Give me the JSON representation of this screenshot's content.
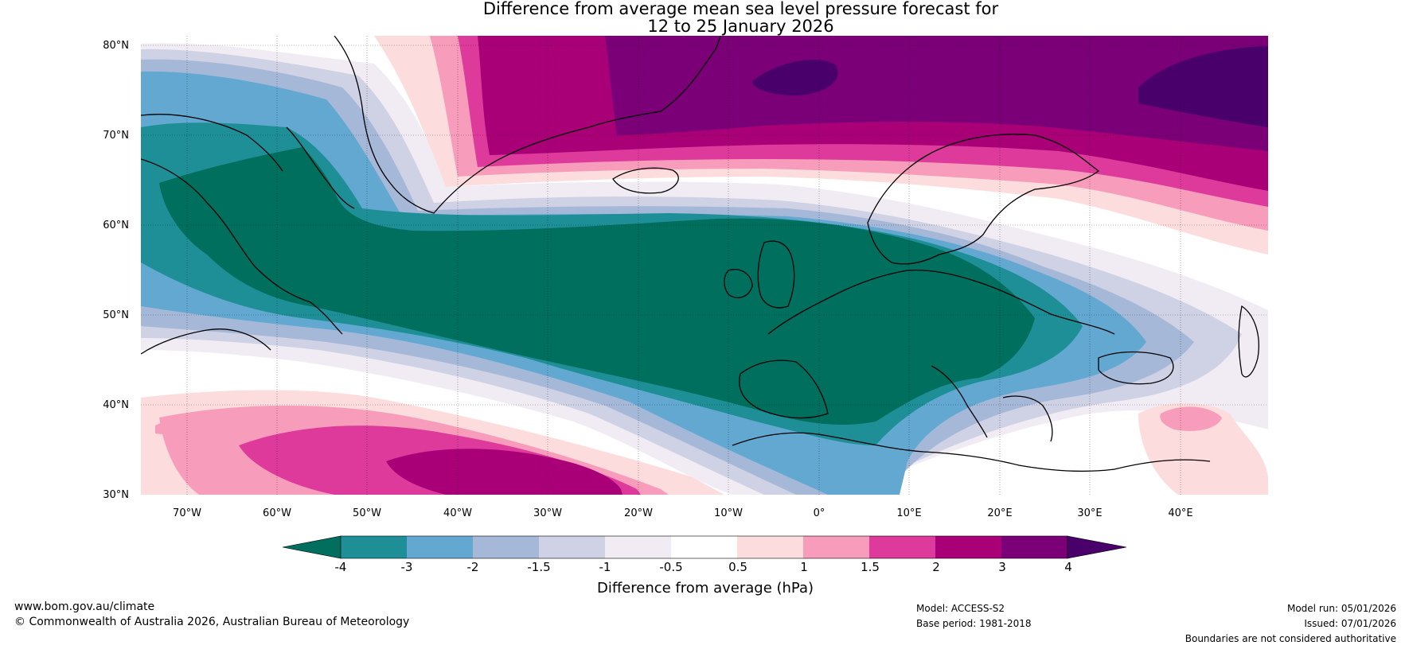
{
  "title": {
    "line1": "Difference from average mean sea level pressure forecast for",
    "line2": "12 to 25 January 2026"
  },
  "axes": {
    "lat_labels": [
      "80°N",
      "70°N",
      "60°N",
      "50°N",
      "40°N",
      "30°N"
    ],
    "lon_labels": [
      "70°W",
      "60°W",
      "50°W",
      "40°W",
      "30°W",
      "20°W",
      "10°W",
      "0°",
      "10°E",
      "20°E",
      "30°E",
      "40°E"
    ]
  },
  "colorbar": {
    "label": "Difference from average (hPa)",
    "ticks": [
      "-4",
      "-3",
      "-2",
      "-1.5",
      "-1",
      "-0.5",
      "0.5",
      "1",
      "1.5",
      "2",
      "3",
      "4"
    ],
    "colors": [
      "#006f5e",
      "#1f8f97",
      "#63a8d0",
      "#a6b8d8",
      "#cfd1e4",
      "#f1ecf3",
      "#ffffff",
      "#fcdcdc",
      "#f79cba",
      "#dd3a9b",
      "#aa0077",
      "#7b0077",
      "#4a006a"
    ]
  },
  "chart_data": {
    "type": "heatmap",
    "title": "Difference from average mean sea level pressure forecast for 12 to 25 January 2026",
    "units": "hPa",
    "lon_range": [
      -75,
      50
    ],
    "lat_range": [
      30,
      81
    ],
    "levels": [
      -4,
      -3,
      -2,
      -1.5,
      -1,
      -0.5,
      0.5,
      1,
      1.5,
      2,
      3,
      4
    ],
    "features": [
      {
        "name": "negative anomaly trough",
        "region": "Labrador Sea through North Atlantic to central Europe",
        "min": "-4"
      },
      {
        "name": "positive anomaly",
        "region": "Greenland Sea to Barents Sea",
        "max": "4"
      },
      {
        "name": "positive anomaly",
        "region": "subtropical North Atlantic",
        "max": "3"
      }
    ]
  },
  "footer": {
    "website": "www.bom.gov.au/climate",
    "copyright": "© Commonwealth of Australia 2026, Australian Bureau of Meteorology",
    "model": "Model: ACCESS-S2",
    "base_period": "Base period: 1981-2018",
    "model_run": "Model run: 05/01/2026",
    "issued": "Issued: 07/01/2026",
    "boundaries": "Boundaries are not considered authoritative"
  }
}
